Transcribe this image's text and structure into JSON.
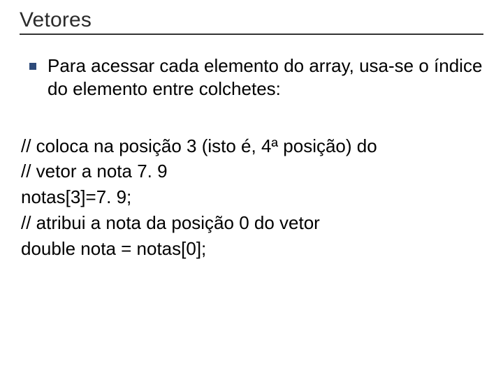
{
  "slide": {
    "title": "Vetores",
    "bullet": {
      "marker_color": "#2e4b7a",
      "text": "Para acessar cada elemento do array, usa-se o índice do elemento entre colchetes:"
    },
    "code": {
      "line1": "// coloca na posição 3 (isto é, 4ª posição) do",
      "line2": "// vetor a nota 7. 9",
      "line3": "notas[3]=7. 9;",
      "line4": "// atribui a nota da posição 0 do vetor",
      "line5": "double nota = notas[0];"
    },
    "style": {
      "background_color": "#ffffff",
      "text_color": "#000000",
      "title_color": "#2b2b2b",
      "underline_color": "#333333",
      "font_family": "Verdana",
      "title_fontsize": 30,
      "body_fontsize": 26
    }
  }
}
